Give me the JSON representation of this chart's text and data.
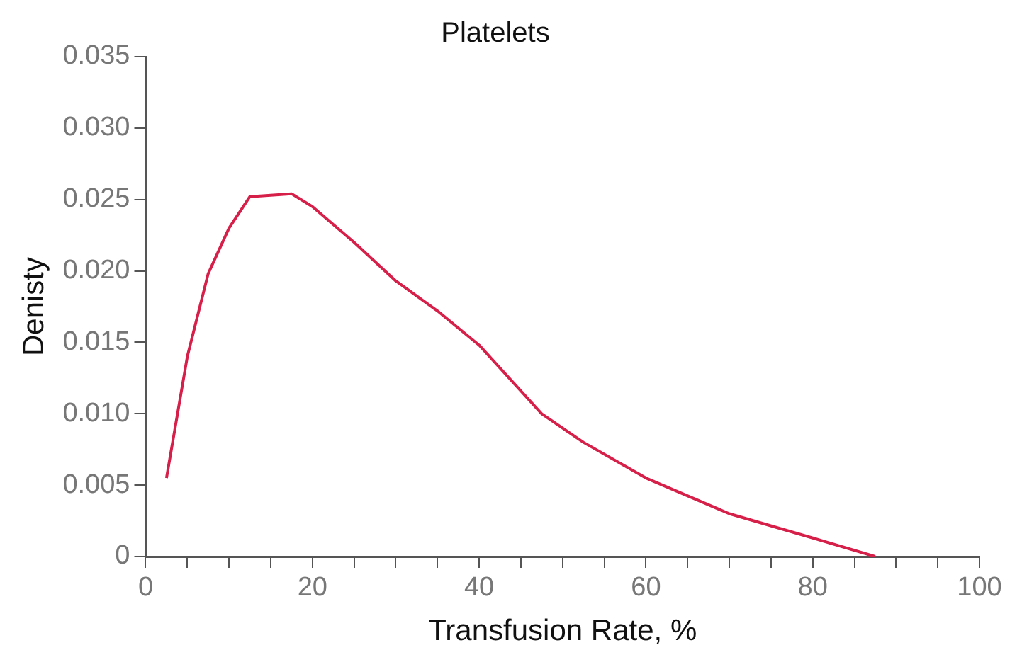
{
  "chart_data": {
    "type": "line",
    "title": "Platelets",
    "xlabel": "Transfusion Rate, %",
    "ylabel": "Denisty",
    "series": [
      {
        "color": "#d6204a",
        "x": [
          2.5,
          5,
          7.5,
          10,
          12.5,
          17.5,
          20,
          25,
          30,
          35,
          40,
          47.5,
          52.5,
          60,
          70,
          80,
          87.5
        ],
        "values": [
          0.0055,
          0.014,
          0.0198,
          0.023,
          0.0252,
          0.0254,
          0.0245,
          0.022,
          0.0193,
          0.0172,
          0.0148,
          0.01,
          0.008,
          0.0055,
          0.003,
          0.0013,
          0
        ]
      }
    ],
    "xlim": [
      0,
      100
    ],
    "xticks": [
      0,
      {
        "value": 5,
        "label": null
      },
      {
        "value": 10,
        "label": null
      },
      {
        "value": 15,
        "label": null
      },
      20,
      {
        "value": 25,
        "label": null
      },
      {
        "value": 30,
        "label": null
      },
      {
        "value": 35,
        "label": null
      },
      40,
      {
        "value": 45,
        "label": null
      },
      {
        "value": 50,
        "label": null
      },
      {
        "value": 55,
        "label": null
      },
      60,
      {
        "value": 65,
        "label": null
      },
      {
        "value": 70,
        "label": null
      },
      {
        "value": 75,
        "label": null
      },
      80,
      {
        "value": 85,
        "label": null
      },
      {
        "value": 90,
        "label": null
      },
      {
        "value": 95,
        "label": null
      },
      100
    ],
    "ylim": [
      0,
      0.035
    ],
    "yticks": [
      0,
      0.005,
      {
        "value": 0.01,
        "label": "0.010"
      },
      0.015,
      {
        "value": 0.02,
        "label": "0.020"
      },
      0.025,
      {
        "value": 0.03,
        "label": "0.030"
      },
      0.035
    ],
    "grid": false,
    "legend": false,
    "marker": "none",
    "line_style": "solid"
  }
}
